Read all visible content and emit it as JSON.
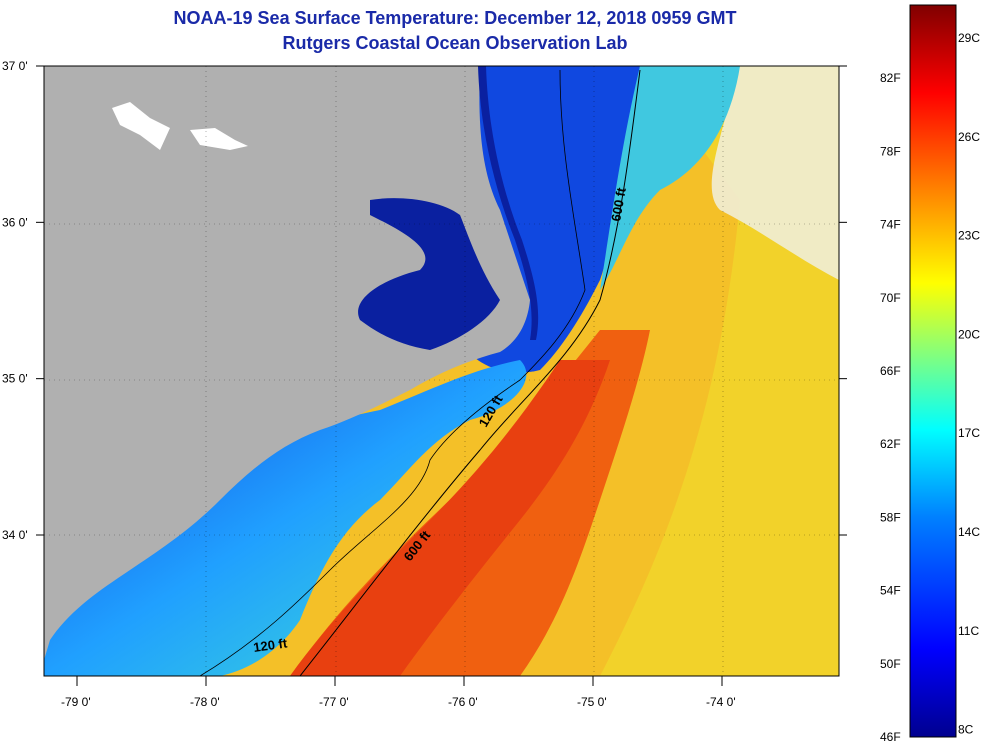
{
  "header": {
    "title": "NOAA-19 Sea Surface Temperature:  December 12, 2018 0959 GMT",
    "subtitle": "Rutgers Coastal Ocean Observation Lab"
  },
  "map": {
    "lat_range": [
      33.2,
      37.0
    ],
    "lon_range": [
      -79.3,
      -73.3
    ],
    "lat_ticks": [
      {
        "value": 37.0,
        "label": "37 0'"
      },
      {
        "value": 36.0,
        "label": "36 0'"
      },
      {
        "value": 35.0,
        "label": "35 0'"
      },
      {
        "value": 34.0,
        "label": "34 0'"
      }
    ],
    "lon_ticks": [
      {
        "value": -79.0,
        "label": "-79 0'"
      },
      {
        "value": -78.0,
        "label": "-78 0'"
      },
      {
        "value": -77.0,
        "label": "-77 0'"
      },
      {
        "value": -76.0,
        "label": "-76 0'"
      },
      {
        "value": -75.0,
        "label": "-75 0'"
      },
      {
        "value": -74.0,
        "label": "-74 0'"
      }
    ],
    "contours": [
      {
        "label": "600 ft",
        "depth_ft": 600
      },
      {
        "label": "120 ft",
        "depth_ft": 120
      },
      {
        "label": "600 ft",
        "depth_ft": 600
      },
      {
        "label": "120 ft",
        "depth_ft": 120
      }
    ]
  },
  "colorbar": {
    "min_f": 46,
    "max_f": 86,
    "fahrenheit_labels": [
      "82F",
      "78F",
      "74F",
      "70F",
      "66F",
      "62F",
      "58F",
      "54F",
      "50F",
      "46F"
    ],
    "celsius_labels": [
      "29C",
      "26C",
      "23C",
      "20C",
      "17C",
      "14C",
      "11C",
      "8C"
    ],
    "colors": [
      "#00008f",
      "#0000ff",
      "#0080ff",
      "#00ffff",
      "#80ff80",
      "#ffff00",
      "#ff8000",
      "#ff0000",
      "#800000"
    ]
  },
  "colors": {
    "land": "#b0b0b0",
    "cold_water": "#0030c0",
    "warm_water": "#f0b020",
    "gulf_stream": "#f05010"
  }
}
